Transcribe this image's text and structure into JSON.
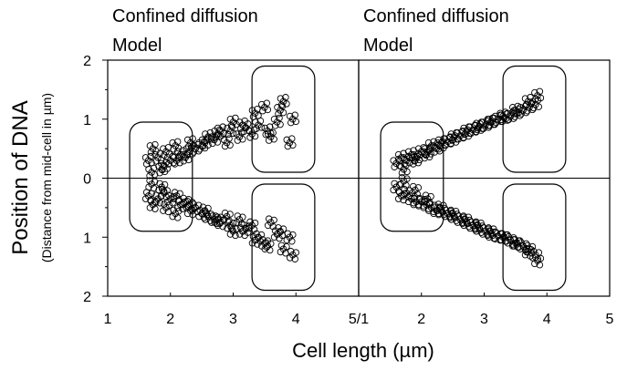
{
  "chart_data": [
    {
      "type": "scatter",
      "title": "Confined diffusion",
      "subtitle": "Model",
      "x_ticks": [
        "1",
        "2",
        "3",
        "4",
        "5/1"
      ],
      "y_ticks": [
        "2",
        "1",
        "0",
        "1",
        "2"
      ],
      "xlim": [
        1,
        5
      ],
      "ylim": [
        -2,
        2
      ],
      "grid": false,
      "marker": "open-circle",
      "annotations": [
        {
          "kind": "rounded-box",
          "x": [
            1.35,
            2.35
          ],
          "y": [
            -0.9,
            0.95
          ]
        },
        {
          "kind": "rounded-box",
          "x": [
            3.3,
            4.3
          ],
          "y": [
            0.1,
            1.9
          ]
        },
        {
          "kind": "rounded-box",
          "x": [
            3.3,
            4.3
          ],
          "y": [
            -1.9,
            -0.1
          ]
        }
      ],
      "series": [
        {
          "x": [
            1.65,
            1.72,
            1.8,
            1.86,
            1.93,
            2.0,
            2.08,
            2.16,
            2.24,
            2.32,
            2.4,
            2.5,
            2.6,
            2.7,
            2.8,
            2.9,
            3.0,
            3.1,
            3.2,
            3.3,
            3.4,
            3.5,
            3.6,
            3.7,
            3.8,
            3.95,
            1.7,
            1.9,
            2.1,
            2.3,
            2.55,
            2.75,
            2.95,
            3.15,
            3.35,
            3.55,
            3.75,
            3.9
          ],
          "y": [
            0.3,
            0.5,
            0.35,
            0.15,
            0.45,
            0.3,
            0.55,
            0.4,
            0.35,
            0.6,
            0.5,
            0.55,
            0.7,
            0.65,
            0.8,
            0.6,
            0.95,
            0.7,
            0.85,
            0.75,
            0.9,
            1.2,
            0.7,
            0.95,
            1.3,
            1.0,
            0.1,
            0.2,
            0.3,
            0.45,
            0.6,
            0.75,
            0.8,
            0.9,
            1.1,
            0.8,
            1.15,
            0.6
          ]
        },
        {
          "x": [
            1.65,
            1.72,
            1.8,
            1.86,
            1.93,
            2.0,
            2.08,
            2.16,
            2.24,
            2.32,
            2.4,
            2.5,
            2.6,
            2.7,
            2.8,
            2.9,
            3.0,
            3.1,
            3.2,
            3.3,
            3.4,
            3.5,
            3.6,
            3.7,
            3.8,
            3.95,
            1.7,
            1.9,
            2.1,
            2.3,
            2.55,
            2.75,
            2.95,
            3.15,
            3.35,
            3.55,
            3.75,
            3.9
          ],
          "y": [
            -0.3,
            -0.45,
            -0.35,
            -0.15,
            -0.5,
            -0.35,
            -0.6,
            -0.45,
            -0.4,
            -0.55,
            -0.5,
            -0.6,
            -0.65,
            -0.7,
            -0.75,
            -0.65,
            -0.9,
            -0.7,
            -0.85,
            -0.8,
            -1.0,
            -1.1,
            -0.75,
            -0.95,
            -1.2,
            -1.3,
            -0.1,
            -0.25,
            -0.3,
            -0.45,
            -0.55,
            -0.7,
            -0.8,
            -0.9,
            -1.05,
            -1.15,
            -0.9,
            -1.0
          ]
        }
      ]
    },
    {
      "type": "scatter",
      "title": "Confined diffusion",
      "subtitle": "Model",
      "x_ticks": [
        "2",
        "3",
        "4",
        "5"
      ],
      "xlim": [
        1,
        5
      ],
      "ylim": [
        -2,
        2
      ],
      "grid": false,
      "marker": "open-circle",
      "annotations": [
        {
          "kind": "rounded-box",
          "x": [
            1.35,
            2.35
          ],
          "y": [
            -0.9,
            0.95
          ]
        },
        {
          "kind": "rounded-box",
          "x": [
            3.3,
            4.3
          ],
          "y": [
            0.1,
            1.9
          ]
        },
        {
          "kind": "rounded-box",
          "x": [
            3.3,
            4.3
          ],
          "y": [
            -1.9,
            -0.1
          ]
        }
      ],
      "series": [
        {
          "x": [
            1.6,
            1.68,
            1.76,
            1.84,
            1.92,
            2.0,
            2.08,
            2.16,
            2.24,
            2.32,
            2.42,
            2.52,
            2.62,
            2.72,
            2.82,
            2.92,
            3.02,
            3.12,
            3.22,
            3.32,
            3.42,
            3.52,
            3.62,
            3.72,
            3.82,
            1.72,
            1.9,
            2.1,
            2.3,
            2.5,
            2.7,
            2.9,
            3.1,
            3.3,
            3.5,
            3.7,
            3.85
          ],
          "y": [
            0.25,
            0.35,
            0.3,
            0.4,
            0.35,
            0.45,
            0.4,
            0.55,
            0.5,
            0.6,
            0.62,
            0.7,
            0.72,
            0.8,
            0.82,
            0.88,
            0.9,
            0.95,
            1.0,
            1.02,
            1.05,
            1.1,
            1.15,
            1.2,
            1.25,
            0.15,
            0.3,
            0.45,
            0.55,
            0.65,
            0.75,
            0.85,
            0.95,
            1.05,
            1.15,
            1.3,
            1.4
          ]
        },
        {
          "x": [
            1.6,
            1.68,
            1.76,
            1.84,
            1.92,
            2.0,
            2.08,
            2.16,
            2.24,
            2.32,
            2.42,
            2.52,
            2.62,
            2.72,
            2.82,
            2.92,
            3.02,
            3.12,
            3.22,
            3.32,
            3.42,
            3.52,
            3.62,
            3.72,
            3.82,
            1.72,
            1.9,
            2.1,
            2.3,
            2.5,
            2.7,
            2.9,
            3.1,
            3.3,
            3.5,
            3.7,
            3.85
          ],
          "y": [
            -0.15,
            -0.3,
            -0.25,
            -0.35,
            -0.4,
            -0.4,
            -0.45,
            -0.5,
            -0.55,
            -0.55,
            -0.6,
            -0.65,
            -0.7,
            -0.75,
            -0.8,
            -0.85,
            -0.9,
            -0.95,
            -0.98,
            -1.0,
            -1.05,
            -1.1,
            -1.15,
            -1.2,
            -1.3,
            -0.05,
            -0.2,
            -0.35,
            -0.5,
            -0.6,
            -0.7,
            -0.8,
            -0.9,
            -1.0,
            -1.1,
            -1.25,
            -1.4
          ]
        }
      ]
    }
  ],
  "axes": {
    "ylabel": "Position of DNA",
    "ylabel_sub": "(Distance from mid-cell in µm)",
    "xlabel": "Cell length (µm)"
  },
  "style": {
    "stroke": "#000000",
    "background": "#ffffff"
  }
}
